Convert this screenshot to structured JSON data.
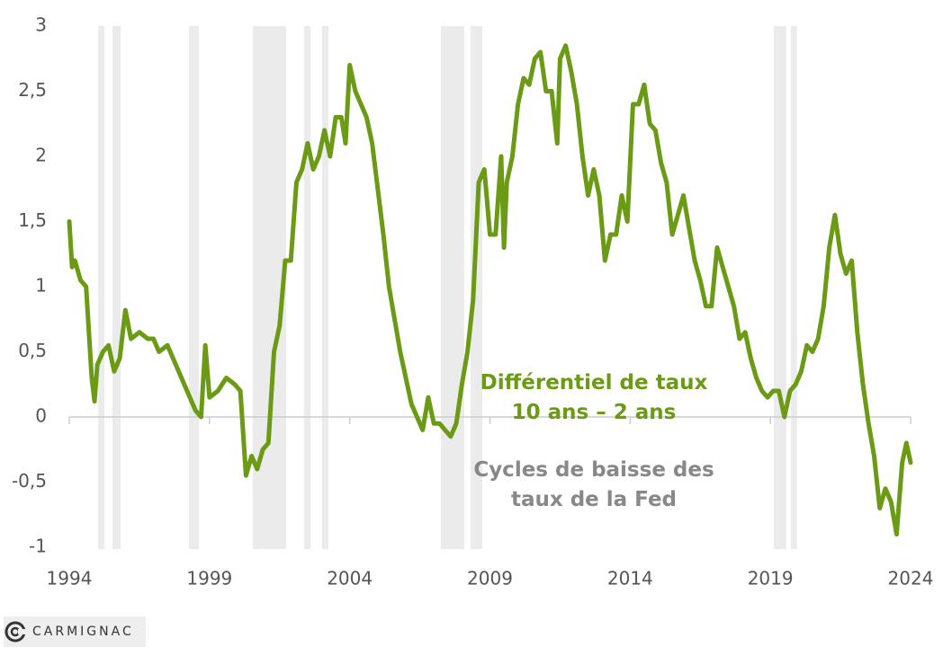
{
  "chart_data": {
    "type": "line",
    "xlim": [
      1994,
      2024
    ],
    "xticks": [
      1994,
      1999,
      2004,
      2009,
      2014,
      2019,
      2024
    ],
    "ylim": [
      -1,
      3
    ],
    "yticks": [
      -1,
      {
        "value": -0.5,
        "label": "-0,5"
      },
      0,
      {
        "value": 0.5,
        "label": "0,5"
      },
      1,
      {
        "value": 1.5,
        "label": "1,5"
      },
      2,
      {
        "value": 2.5,
        "label": "2,5"
      },
      3
    ],
    "shaded_periods_name": "Cycles de baisse des taux de la Fed",
    "shaded_periods_color": "#ebebeb",
    "shaded_periods": [
      [
        1995.03,
        1995.25
      ],
      [
        1995.54,
        1995.83
      ],
      [
        1998.27,
        1998.62
      ],
      [
        2000.54,
        2001.73
      ],
      [
        2002.37,
        2002.6
      ],
      [
        2003.01,
        2003.24
      ],
      [
        2007.25,
        2008.08
      ],
      [
        2008.31,
        2008.73
      ],
      [
        2019.12,
        2019.57
      ],
      [
        2019.73,
        2019.95
      ]
    ],
    "x": [
      1994.0,
      1994.1,
      1994.2,
      1994.4,
      1994.6,
      1994.8,
      1994.9,
      1995.0,
      1995.2,
      1995.4,
      1995.6,
      1995.8,
      1996.0,
      1996.2,
      1996.5,
      1996.8,
      1997.0,
      1997.2,
      1997.5,
      1997.8,
      1998.0,
      1998.3,
      1998.5,
      1998.7,
      1998.85,
      1999.0,
      1999.3,
      1999.6,
      1999.9,
      2000.1,
      2000.3,
      2000.5,
      2000.7,
      2000.9,
      2001.1,
      2001.3,
      2001.5,
      2001.7,
      2001.9,
      2002.1,
      2002.3,
      2002.5,
      2002.7,
      2002.9,
      2003.1,
      2003.3,
      2003.5,
      2003.7,
      2003.85,
      2004.0,
      2004.2,
      2004.4,
      2004.6,
      2004.8,
      2005.0,
      2005.2,
      2005.4,
      2005.6,
      2005.8,
      2006.0,
      2006.2,
      2006.4,
      2006.6,
      2006.8,
      2007.0,
      2007.2,
      2007.4,
      2007.6,
      2007.8,
      2008.0,
      2008.2,
      2008.4,
      2008.6,
      2008.8,
      2009.0,
      2009.2,
      2009.4,
      2009.5,
      2009.6,
      2009.8,
      2010.0,
      2010.2,
      2010.4,
      2010.6,
      2010.8,
      2011.0,
      2011.2,
      2011.4,
      2011.5,
      2011.7,
      2011.9,
      2012.1,
      2012.3,
      2012.5,
      2012.7,
      2012.9,
      2013.1,
      2013.3,
      2013.5,
      2013.7,
      2013.9,
      2014.1,
      2014.3,
      2014.5,
      2014.7,
      2014.9,
      2015.1,
      2015.3,
      2015.5,
      2015.7,
      2015.9,
      2016.1,
      2016.3,
      2016.5,
      2016.7,
      2016.9,
      2017.1,
      2017.3,
      2017.5,
      2017.7,
      2017.9,
      2018.1,
      2018.3,
      2018.5,
      2018.7,
      2018.9,
      2019.1,
      2019.3,
      2019.5,
      2019.7,
      2019.9,
      2020.1,
      2020.3,
      2020.5,
      2020.7,
      2020.9,
      2021.1,
      2021.3,
      2021.5,
      2021.7,
      2021.9,
      2022.1,
      2022.3,
      2022.5,
      2022.7,
      2022.9,
      2023.1,
      2023.3,
      2023.5,
      2023.7,
      2023.85,
      2024.0
    ],
    "series": [
      {
        "name": "Différentiel de taux 10 ans – 2 ans",
        "color": "#6b9a14",
        "values": [
          1.5,
          1.15,
          1.2,
          1.05,
          1.0,
          0.3,
          0.12,
          0.4,
          0.5,
          0.55,
          0.35,
          0.45,
          0.82,
          0.6,
          0.65,
          0.6,
          0.6,
          0.5,
          0.55,
          0.4,
          0.3,
          0.15,
          0.05,
          0.0,
          0.55,
          0.15,
          0.2,
          0.3,
          0.25,
          0.2,
          -0.45,
          -0.3,
          -0.4,
          -0.25,
          -0.2,
          0.5,
          0.7,
          1.2,
          1.2,
          1.8,
          1.9,
          2.1,
          1.9,
          2.0,
          2.2,
          2.0,
          2.3,
          2.3,
          2.1,
          2.7,
          2.5,
          2.4,
          2.3,
          2.1,
          1.75,
          1.4,
          1.0,
          0.75,
          0.5,
          0.3,
          0.1,
          0.0,
          -0.1,
          0.15,
          -0.05,
          -0.05,
          -0.1,
          -0.15,
          -0.05,
          0.25,
          0.5,
          0.9,
          1.8,
          1.9,
          1.4,
          1.4,
          2.0,
          1.3,
          1.8,
          2.0,
          2.4,
          2.6,
          2.55,
          2.75,
          2.8,
          2.5,
          2.5,
          2.1,
          2.75,
          2.85,
          2.65,
          2.4,
          2.0,
          1.7,
          1.9,
          1.7,
          1.2,
          1.4,
          1.4,
          1.7,
          1.5,
          2.4,
          2.4,
          2.55,
          2.25,
          2.2,
          1.95,
          1.8,
          1.4,
          1.55,
          1.7,
          1.45,
          1.2,
          1.05,
          0.85,
          0.85,
          1.3,
          1.15,
          1.0,
          0.85,
          0.6,
          0.65,
          0.45,
          0.3,
          0.2,
          0.15,
          0.2,
          0.2,
          0.0,
          0.2,
          0.25,
          0.35,
          0.55,
          0.5,
          0.6,
          0.85,
          1.3,
          1.55,
          1.25,
          1.1,
          1.2,
          0.65,
          0.25,
          -0.05,
          -0.3,
          -0.7,
          -0.55,
          -0.65,
          -0.9,
          -0.35,
          -0.2,
          -0.35
        ]
      }
    ]
  },
  "logo": "CARMIGNAC"
}
